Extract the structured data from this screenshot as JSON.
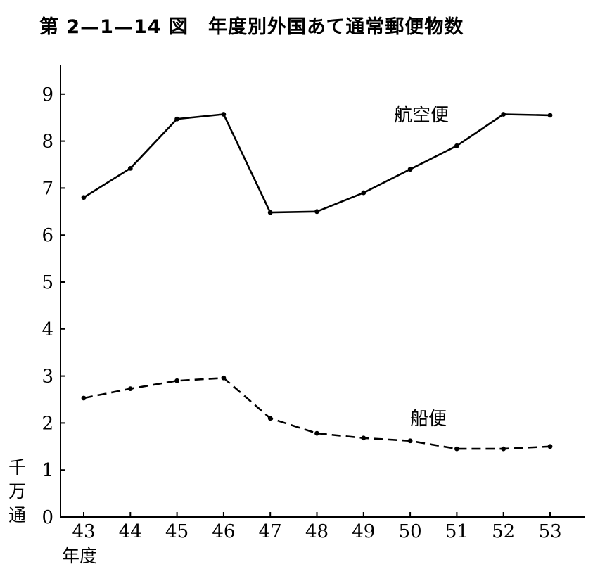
{
  "title": "第 2—1—14 図　年度別外国あて通常郵便物数",
  "chart_data": {
    "type": "line",
    "title": "第 2—1—14 図　年度別外国あて通常郵便物数",
    "xlabel": "年度",
    "ylabel": "千万通",
    "x": [
      "43",
      "44",
      "45",
      "46",
      "47",
      "48",
      "49",
      "50",
      "51",
      "52",
      "53"
    ],
    "ylim": [
      0,
      9
    ],
    "yticks": [
      "0",
      "1",
      "2",
      "3",
      "4",
      "5",
      "6",
      "7",
      "8",
      "9"
    ],
    "grid": false,
    "series": [
      {
        "name": "航空便",
        "style": "solid",
        "values": [
          6.8,
          7.42,
          8.47,
          8.57,
          6.48,
          6.5,
          6.9,
          7.4,
          7.9,
          8.57,
          8.55
        ]
      },
      {
        "name": "船便",
        "style": "dashed",
        "values": [
          2.53,
          2.73,
          2.9,
          2.96,
          2.1,
          1.78,
          1.68,
          1.62,
          1.45,
          1.45,
          1.5
        ]
      }
    ]
  },
  "colors": {
    "line": "#000000",
    "background": "#ffffff"
  }
}
